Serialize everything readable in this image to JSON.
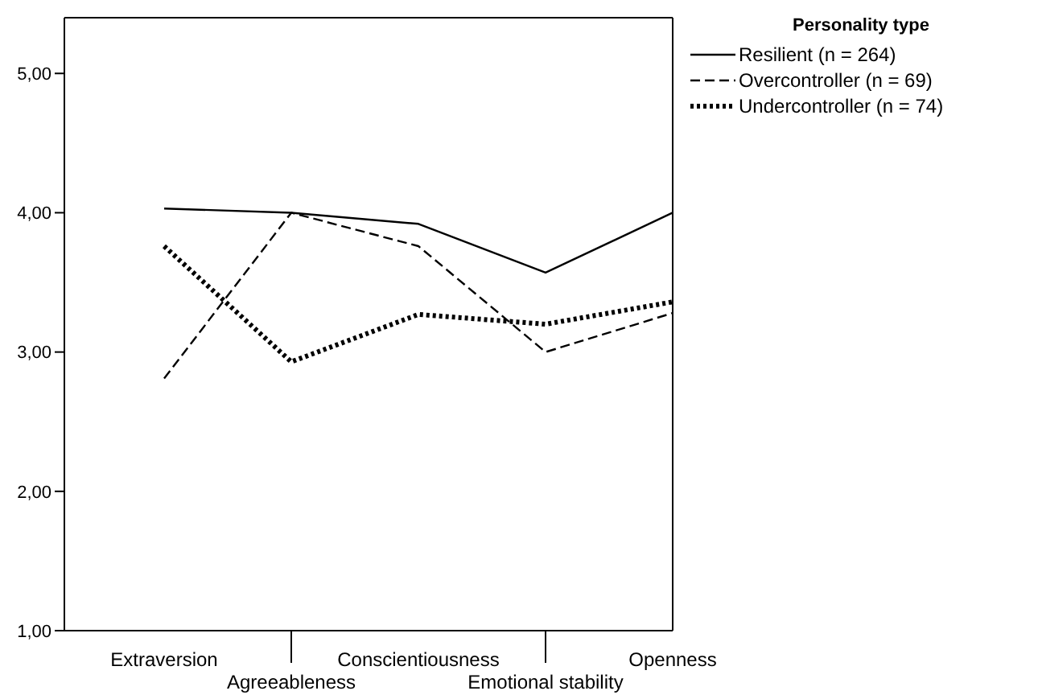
{
  "chart_data": {
    "type": "line",
    "categories": [
      "Extraversion",
      "Agreeableness",
      "Conscientiousness",
      "Emotional stability",
      "Openness"
    ],
    "series": [
      {
        "name": "Resilient (n = 264)",
        "color": "#000000",
        "line_style": "solid",
        "values": [
          4.03,
          4.0,
          3.92,
          3.57,
          4.0
        ]
      },
      {
        "name": "Overcontroller (n = 69)",
        "color": "#000000",
        "line_style": "dashed",
        "values": [
          2.81,
          4.0,
          3.76,
          3.0,
          3.28
        ]
      },
      {
        "name": "Undercontroller (n = 74)",
        "color": "#000000",
        "line_style": "dotted",
        "values": [
          3.76,
          2.93,
          3.27,
          3.2,
          3.36
        ]
      }
    ],
    "legend_title": "Personality type",
    "legend": "top right",
    "grid": false,
    "marker": "none",
    "ylim": [
      1,
      5.4
    ],
    "yticks": [
      {
        "value": 1,
        "label": "1,00"
      },
      {
        "value": 2,
        "label": "2,00"
      },
      {
        "value": 3,
        "label": "3,00"
      },
      {
        "value": 4,
        "label": "4,00"
      },
      {
        "value": 5,
        "label": "5,00"
      }
    ]
  }
}
